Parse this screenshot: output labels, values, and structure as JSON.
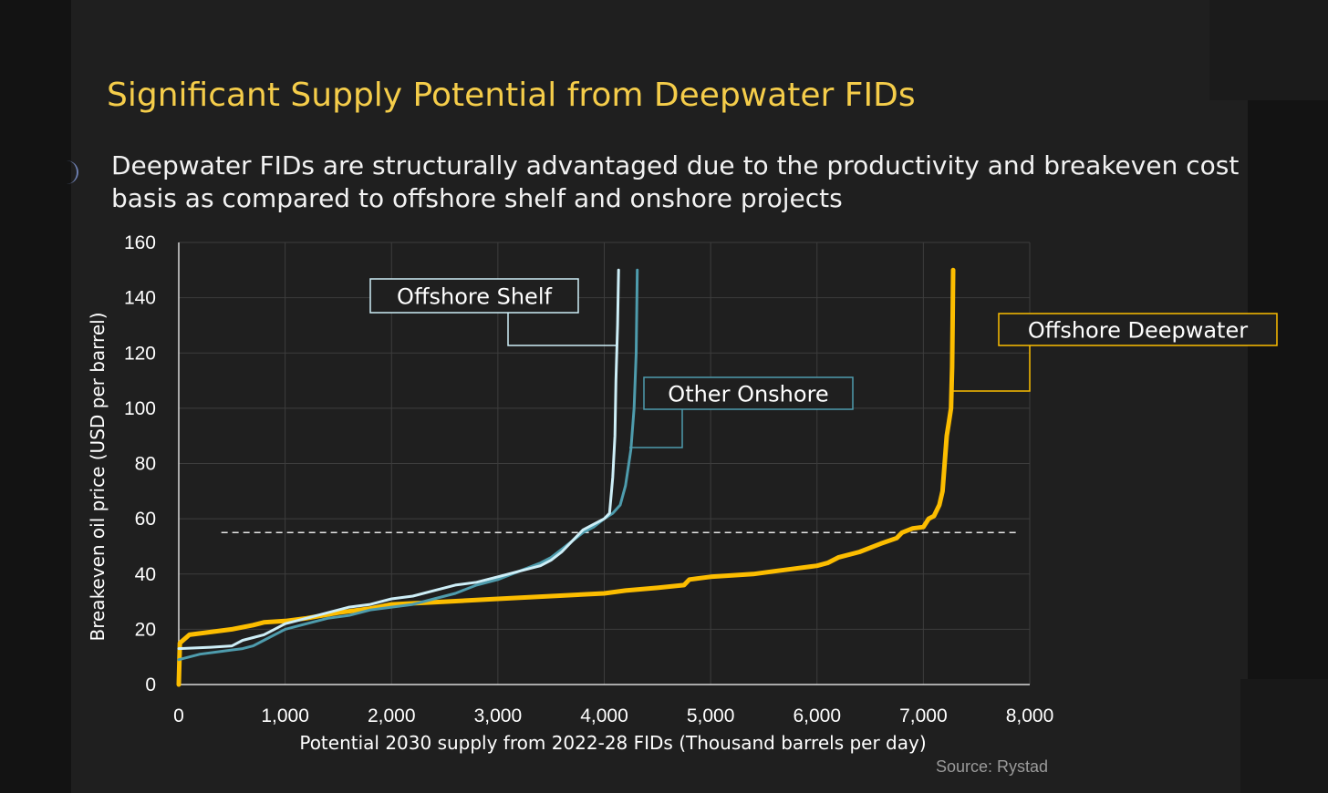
{
  "title": "Significant Supply Potential from Deepwater FIDs",
  "subtitle": "Deepwater FIDs are structurally advantaged due to the productivity and breakeven cost basis as compared to offshore shelf and onshore projects",
  "source": "Source: Rystad",
  "chart_data": {
    "type": "line",
    "title": "",
    "xlabel": "Potential 2030 supply from 2022-28 FIDs (Thousand barrels per day)",
    "ylabel": "Breakeven oil price (USD per barrel)",
    "xlim": [
      0,
      8000
    ],
    "ylim": [
      0,
      160
    ],
    "xticks": [
      0,
      1000,
      2000,
      3000,
      4000,
      5000,
      6000,
      7000,
      8000
    ],
    "xtick_labels": [
      "0",
      "1,000",
      "2,000",
      "3,000",
      "4,000",
      "5,000",
      "6,000",
      "7,000",
      "8,000"
    ],
    "yticks": [
      0,
      20,
      40,
      60,
      80,
      100,
      120,
      140,
      160
    ],
    "ytick_labels": [
      "0",
      "20",
      "40",
      "60",
      "80",
      "100",
      "120",
      "140",
      "160"
    ],
    "grid": true,
    "reference_line": {
      "y": 55,
      "style": "dashed",
      "x_range": [
        400,
        7900
      ]
    },
    "series": [
      {
        "name": "Offshore Shelf",
        "color": "#cdeef7",
        "points": [
          [
            0,
            13
          ],
          [
            300,
            13.5
          ],
          [
            500,
            14
          ],
          [
            600,
            16
          ],
          [
            700,
            17
          ],
          [
            800,
            18
          ],
          [
            900,
            20
          ],
          [
            1000,
            22
          ],
          [
            1200,
            24
          ],
          [
            1400,
            26
          ],
          [
            1600,
            28
          ],
          [
            1800,
            29
          ],
          [
            2000,
            31
          ],
          [
            2200,
            32
          ],
          [
            2400,
            34
          ],
          [
            2600,
            36
          ],
          [
            2800,
            37
          ],
          [
            3000,
            39
          ],
          [
            3200,
            41
          ],
          [
            3400,
            43
          ],
          [
            3500,
            45
          ],
          [
            3600,
            48
          ],
          [
            3700,
            52
          ],
          [
            3800,
            56
          ],
          [
            3900,
            58
          ],
          [
            4000,
            60
          ],
          [
            4050,
            62
          ],
          [
            4080,
            75
          ],
          [
            4100,
            90
          ],
          [
            4110,
            110
          ],
          [
            4125,
            130
          ],
          [
            4135,
            150
          ]
        ]
      },
      {
        "name": "Other Onshore",
        "color": "#4e9cad",
        "points": [
          [
            0,
            9
          ],
          [
            100,
            10
          ],
          [
            200,
            11
          ],
          [
            400,
            12
          ],
          [
            600,
            13
          ],
          [
            700,
            14
          ],
          [
            800,
            16
          ],
          [
            900,
            18
          ],
          [
            1000,
            20
          ],
          [
            1200,
            22
          ],
          [
            1400,
            24
          ],
          [
            1600,
            25
          ],
          [
            1800,
            27
          ],
          [
            2000,
            28
          ],
          [
            2200,
            29
          ],
          [
            2400,
            31
          ],
          [
            2600,
            33
          ],
          [
            2800,
            36
          ],
          [
            3000,
            38
          ],
          [
            3200,
            41
          ],
          [
            3400,
            44
          ],
          [
            3500,
            46
          ],
          [
            3600,
            49
          ],
          [
            3700,
            52
          ],
          [
            3800,
            55
          ],
          [
            3900,
            57
          ],
          [
            4000,
            60
          ],
          [
            4080,
            62
          ],
          [
            4150,
            65
          ],
          [
            4200,
            72
          ],
          [
            4250,
            85
          ],
          [
            4280,
            100
          ],
          [
            4300,
            120
          ],
          [
            4310,
            150
          ]
        ]
      },
      {
        "name": "Offshore Deepwater",
        "color": "#fcbd00",
        "points": [
          [
            0,
            0
          ],
          [
            10,
            15
          ],
          [
            100,
            18
          ],
          [
            300,
            19
          ],
          [
            500,
            20
          ],
          [
            700,
            21.5
          ],
          [
            800,
            22.5
          ],
          [
            1000,
            23
          ],
          [
            1200,
            24
          ],
          [
            1500,
            26
          ],
          [
            1800,
            27.5
          ],
          [
            2000,
            29
          ],
          [
            2500,
            30
          ],
          [
            3000,
            31
          ],
          [
            3500,
            32
          ],
          [
            4000,
            33
          ],
          [
            4200,
            34
          ],
          [
            4500,
            35
          ],
          [
            4750,
            36
          ],
          [
            4800,
            38
          ],
          [
            5000,
            39
          ],
          [
            5200,
            39.5
          ],
          [
            5400,
            40
          ],
          [
            5600,
            41
          ],
          [
            5800,
            42
          ],
          [
            6000,
            43
          ],
          [
            6100,
            44
          ],
          [
            6200,
            46
          ],
          [
            6400,
            48
          ],
          [
            6600,
            51
          ],
          [
            6750,
            53
          ],
          [
            6800,
            55
          ],
          [
            6900,
            56.5
          ],
          [
            7000,
            57
          ],
          [
            7050,
            60
          ],
          [
            7100,
            61
          ],
          [
            7150,
            65
          ],
          [
            7180,
            70
          ],
          [
            7200,
            80
          ],
          [
            7220,
            90
          ],
          [
            7240,
            95
          ],
          [
            7260,
            100
          ],
          [
            7270,
            115
          ],
          [
            7275,
            130
          ],
          [
            7280,
            150
          ]
        ]
      }
    ],
    "labels": [
      {
        "text": "Offshore Shelf",
        "series": "Offshore Shelf"
      },
      {
        "text": "Other Onshore",
        "series": "Other Onshore"
      },
      {
        "text": "Offshore Deepwater",
        "series": "Offshore Deepwater"
      }
    ]
  }
}
